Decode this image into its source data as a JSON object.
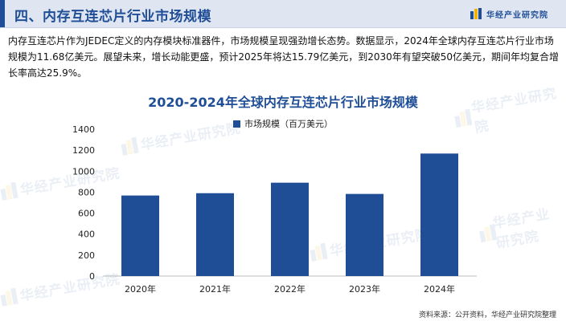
{
  "header": {
    "title": "四、内存互连芯片行业市场规模",
    "brand": "华经产业研究院",
    "colors": {
      "accent": "#1f4e96",
      "band": "#dfe6f2",
      "logo_yellow": "#f0b400"
    }
  },
  "description": "内存互连芯片作为JEDEC定义的内存模块标准器件，市场规模呈现强劲增长态势。数据显示，2024年全球内存互连芯片行业市场规模为11.68亿美元。展望未来，增长动能更盛，预计2025年将达15.79亿美元，到2030年有望突破50亿美元，期间年均复合增长率高达25.9%。",
  "watermark": "华经产业研究院",
  "source": "资料来源：公开资料，华经产业研究院整理",
  "chart_data": {
    "type": "bar",
    "title": "2020-2024年全球内存互连芯片行业市场规模",
    "categories": [
      "2020年",
      "2021年",
      "2022年",
      "2023年",
      "2024年"
    ],
    "series": [
      {
        "name": "市场规模（百万美元）",
        "values": [
          768,
          790,
          890,
          783,
          1168
        ],
        "color": "#1f4e96"
      }
    ],
    "ylim": [
      0,
      1400
    ],
    "yticks": [
      "0",
      "200",
      "400",
      "600",
      "800",
      "1000",
      "1200",
      "1400"
    ],
    "xlabel": "",
    "ylabel": "",
    "grid": false,
    "legend": "top-center"
  }
}
